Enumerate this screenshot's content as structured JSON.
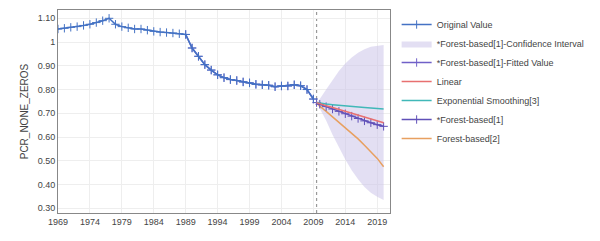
{
  "chart_data": {
    "type": "line",
    "ylabel": "PCR_NONE_ZEROS",
    "xlim": [
      1969,
      2021
    ],
    "xticks": [
      1969,
      1974,
      1979,
      1984,
      1989,
      1994,
      1999,
      2004,
      2009,
      2014,
      2019
    ],
    "ylim": [
      0.28,
      1.135
    ],
    "yticks": [
      {
        "value": 0.3,
        "label": "0.30"
      },
      {
        "value": 0.4,
        "label": "0.40"
      },
      {
        "value": 0.5,
        "label": "0.50"
      },
      {
        "value": 0.6,
        "label": "0.60"
      },
      {
        "value": 0.7,
        "label": "0.70"
      },
      {
        "value": 0.8,
        "label": "0.80"
      },
      {
        "value": 0.9,
        "label": "0.90"
      },
      1,
      {
        "value": 1.1,
        "label": "1.10"
      }
    ],
    "grid": true,
    "legend": "right",
    "vertical_lines": [
      {
        "x": 2009.5,
        "color": "#999999",
        "line_style": "dotted"
      }
    ],
    "series": [
      {
        "name": "Original Value",
        "type": "line",
        "color": "#4472C4",
        "marker": "cross",
        "line_style": "solid",
        "x": [
          1969,
          1970,
          1971,
          1972,
          1973,
          1974,
          1975,
          1976,
          1977,
          1978,
          1979,
          1980,
          1981,
          1982,
          1983,
          1984,
          1985,
          1986,
          1987,
          1988,
          1989,
          1990,
          1991,
          1992,
          1993,
          1994,
          1995,
          1996,
          1997,
          1998,
          1999,
          2000,
          2001,
          2002,
          2003,
          2004,
          2005,
          2006,
          2007,
          2008,
          2009
        ],
        "values": [
          1.055,
          1.058,
          1.062,
          1.065,
          1.07,
          1.075,
          1.082,
          1.09,
          1.1,
          1.075,
          1.065,
          1.06,
          1.055,
          1.055,
          1.05,
          1.045,
          1.042,
          1.04,
          1.038,
          1.035,
          1.032,
          0.975,
          0.94,
          0.905,
          0.882,
          0.862,
          0.85,
          0.842,
          0.838,
          0.832,
          0.828,
          0.822,
          0.82,
          0.818,
          0.812,
          0.815,
          0.815,
          0.82,
          0.816,
          0.8,
          0.76
        ]
      },
      {
        "name": "*Forest-based[1]-Confidence Interval",
        "type": "band",
        "color": "#C8C0E8",
        "x": [
          2009.5,
          2010,
          2011,
          2012,
          2013,
          2014,
          2015,
          2016,
          2017,
          2018,
          2019,
          2020
        ],
        "lower": [
          0.745,
          0.72,
          0.67,
          0.61,
          0.555,
          0.505,
          0.46,
          0.422,
          0.39,
          0.365,
          0.348,
          0.335
        ],
        "upper": [
          0.745,
          0.76,
          0.8,
          0.84,
          0.878,
          0.91,
          0.935,
          0.955,
          0.97,
          0.98,
          0.985,
          0.988
        ]
      },
      {
        "name": "*Forest-based[1]-Fitted Value",
        "type": "line",
        "color": "#7060C8",
        "marker": "cross",
        "line_style": "solid",
        "x": [
          1989,
          1990,
          1991,
          1992,
          1993,
          1994,
          1995,
          1996,
          1997,
          1998,
          1999,
          2000,
          2001,
          2002,
          2003,
          2004,
          2005,
          2006,
          2007,
          2008,
          2009
        ],
        "values": [
          1.032,
          0.975,
          0.94,
          0.905,
          0.882,
          0.862,
          0.85,
          0.842,
          0.838,
          0.832,
          0.828,
          0.822,
          0.82,
          0.818,
          0.812,
          0.815,
          0.815,
          0.82,
          0.816,
          0.8,
          0.76
        ]
      },
      {
        "name": "Linear",
        "type": "line",
        "color": "#E87070",
        "line_style": "solid",
        "x": [
          2009.5,
          2010,
          2011,
          2012,
          2013,
          2014,
          2015,
          2016,
          2017,
          2018,
          2019,
          2020
        ],
        "values": [
          0.745,
          0.74,
          0.732,
          0.724,
          0.716,
          0.708,
          0.7,
          0.692,
          0.684,
          0.676,
          0.668,
          0.66
        ]
      },
      {
        "name": "Exponential Smoothing[3]",
        "type": "line",
        "color": "#40B8B8",
        "line_style": "solid",
        "x": [
          2009.5,
          2010,
          2011,
          2012,
          2013,
          2014,
          2015,
          2016,
          2017,
          2018,
          2019,
          2020
        ],
        "values": [
          0.745,
          0.742,
          0.739,
          0.736,
          0.733,
          0.73,
          0.728,
          0.726,
          0.724,
          0.722,
          0.72,
          0.718
        ]
      },
      {
        "name": "*Forest-based[1]",
        "type": "line",
        "color": "#6050B8",
        "marker": "cross",
        "line_style": "solid",
        "x": [
          2009.5,
          2010,
          2011,
          2012,
          2013,
          2014,
          2015,
          2016,
          2017,
          2018,
          2019,
          2020
        ],
        "values": [
          0.745,
          0.738,
          0.728,
          0.718,
          0.708,
          0.698,
          0.688,
          0.678,
          0.668,
          0.66,
          0.652,
          0.645
        ]
      },
      {
        "name": "Forest-based[2]",
        "type": "line",
        "color": "#E8A060",
        "line_style": "solid",
        "x": [
          2009.5,
          2010,
          2011,
          2012,
          2013,
          2014,
          2015,
          2016,
          2017,
          2018,
          2019,
          2020
        ],
        "values": [
          0.745,
          0.73,
          0.708,
          0.685,
          0.662,
          0.638,
          0.615,
          0.592,
          0.565,
          0.538,
          0.51,
          0.475
        ]
      }
    ]
  }
}
